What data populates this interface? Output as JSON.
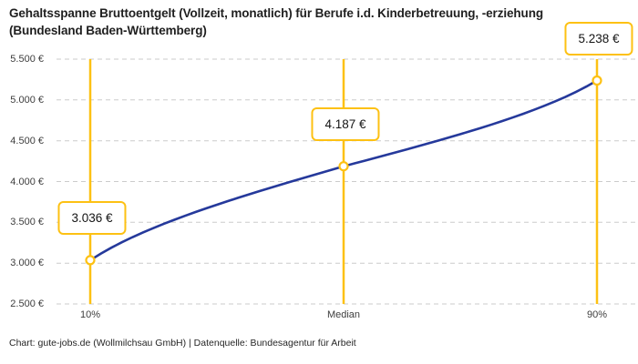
{
  "chart_data": {
    "type": "line",
    "title": "Gehaltsspanne Bruttoentgelt (Vollzeit, monatlich) für Berufe i.d. Kinderbetreuung, -erziehung (Bundesland Baden-Württemberg)",
    "categories": [
      "10%",
      "Median",
      "90%"
    ],
    "values": [
      3036,
      4187,
      5238
    ],
    "value_labels": [
      "3.036 €",
      "4.187 €",
      "5.238 €"
    ],
    "series": [
      {
        "name": "Bruttoentgelt",
        "values": [
          3036,
          4187,
          5238
        ]
      }
    ],
    "xlabel": "",
    "ylabel": "",
    "ylim": [
      2500,
      5500
    ],
    "y_ticks": [
      {
        "value": 5500,
        "label": "5.500 €"
      },
      {
        "value": 5000,
        "label": "5.000 €"
      },
      {
        "value": 4500,
        "label": "4.500 €"
      },
      {
        "value": 4000,
        "label": "4.000 €"
      },
      {
        "value": 3500,
        "label": "3.500 €"
      },
      {
        "value": 3000,
        "label": "3.000 €"
      },
      {
        "value": 2500,
        "label": "2.500 €"
      }
    ],
    "grid": "horizontal-dashed",
    "legend": "none",
    "curve_style": "smooth s-curve (quantile interpolation), markers at labeled percentiles",
    "colors": {
      "line": "#25399B",
      "accent": "#FDC113",
      "grid": "#CBCBCB",
      "marker_fill": "#FFFFFF",
      "text": "#1F1F1F"
    },
    "footer": "Chart: gute-jobs.de (Wollmilchsau GmbH) | Datenquelle: Bundesagentur für Arbeit"
  }
}
